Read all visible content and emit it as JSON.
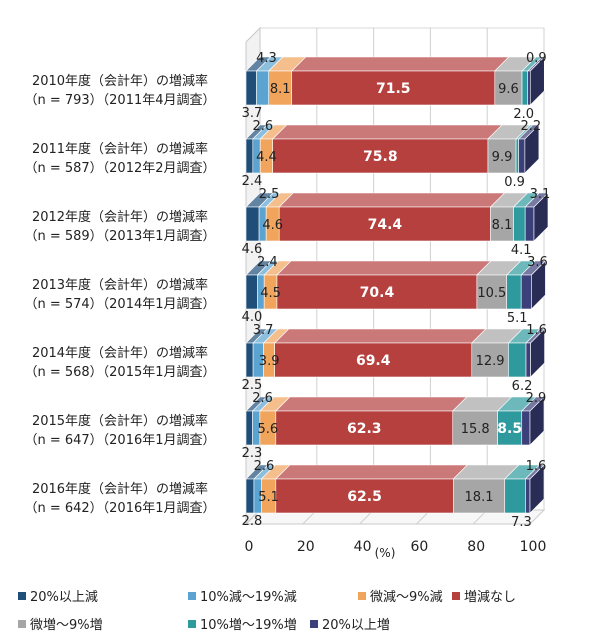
{
  "chart_data": {
    "type": "bar",
    "stacked": true,
    "orientation": "horizontal",
    "style": "3d",
    "xlabel": "(%)",
    "xlim": [
      0,
      100
    ],
    "xticks": [
      "0",
      "20",
      "40",
      "60",
      "80",
      "100"
    ],
    "legend_position": "bottom",
    "categories": [
      {
        "line1": "2010年度（会計年）の増減率",
        "line2": "（n = 793）（2011年4月調査）"
      },
      {
        "line1": "2011年度（会計年）の増減率",
        "line2": "（n = 587）（2012年2月調査）"
      },
      {
        "line1": "2012年度（会計年）の増減率",
        "line2": "（n = 589）（2013年1月調査）"
      },
      {
        "line1": "2013年度（会計年）の増減率",
        "line2": "（n = 574）（2014年1月調査）"
      },
      {
        "line1": "2014年度（会計年）の増減率",
        "line2": "（n = 568）（2015年1月調査）"
      },
      {
        "line1": "2015年度（会計年）の増減率",
        "line2": "（n = 647）（2016年1月調査）"
      },
      {
        "line1": "2016年度（会計年）の増減率",
        "line2": "（n = 642）（2016年1月調査）"
      }
    ],
    "series": [
      {
        "name": "20%以上減",
        "color": "#1f4e79",
        "values": [
          3.7,
          2.4,
          4.6,
          4.0,
          2.5,
          2.3,
          2.8
        ]
      },
      {
        "name": "10%減～19%減",
        "color": "#5ba3d0",
        "values": [
          4.3,
          2.6,
          2.5,
          2.4,
          3.7,
          2.6,
          2.6
        ]
      },
      {
        "name": "微減～9%減",
        "color": "#f0a45c",
        "values": [
          8.1,
          4.4,
          4.6,
          4.5,
          3.9,
          5.6,
          5.1
        ]
      },
      {
        "name": "増減なし",
        "color": "#b5403e",
        "values": [
          71.5,
          75.8,
          74.4,
          70.4,
          69.4,
          62.3,
          62.5
        ]
      },
      {
        "name": "微増～9%増",
        "color": "#a6a6a6",
        "values": [
          9.6,
          9.9,
          8.1,
          10.5,
          12.9,
          15.8,
          18.1
        ]
      },
      {
        "name": "10%増～19%増",
        "color": "#2f9a9e",
        "values": [
          2.0,
          0.9,
          4.1,
          5.1,
          6.2,
          8.5,
          7.3
        ]
      },
      {
        "name": "20%以上増",
        "color": "#3b3f7a",
        "values": [
          0.9,
          2.2,
          3.1,
          3.6,
          1.6,
          2.9,
          1.6
        ]
      }
    ]
  }
}
